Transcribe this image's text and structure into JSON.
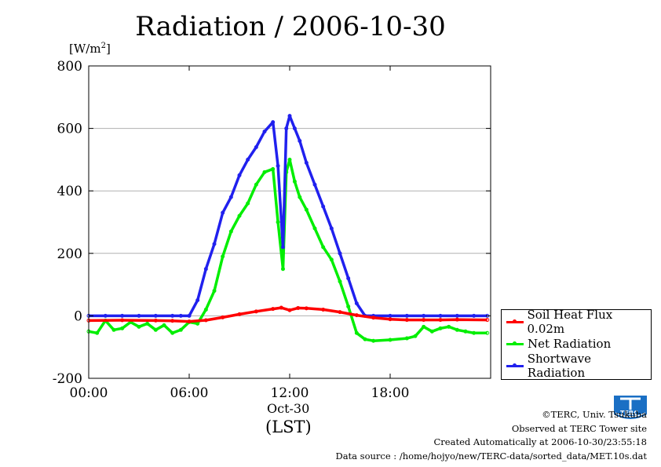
{
  "chart_data": {
    "type": "line",
    "title": "Radiation / 2006-10-30",
    "ylabel_unit": "W/m",
    "ylabel_unit_sup": "2",
    "xlabel": "(LST)",
    "date_label": "Oct-30",
    "ylim": [
      -200,
      800
    ],
    "xlim_hours": [
      0,
      24
    ],
    "y_ticks": [
      -200,
      0,
      200,
      400,
      600,
      800
    ],
    "y_tick_labels": [
      "-200",
      "0",
      "200",
      "400",
      "600",
      "800"
    ],
    "x_ticks_hours": [
      0,
      6,
      12,
      18
    ],
    "x_tick_labels": [
      "00:00",
      "06:00",
      "12:00",
      "18:00"
    ],
    "grid": true,
    "legend_placement": "outside-bottom-right",
    "series": [
      {
        "name": "Soil Heat Flux 0.02m",
        "color": "#ff0000",
        "x_hours": [
          0,
          2,
          4,
          5,
          6,
          7,
          8,
          9,
          10,
          11,
          11.5,
          12,
          12.5,
          13,
          14,
          15,
          16,
          17,
          18,
          19,
          20,
          21,
          22,
          23.8
        ],
        "values": [
          -15,
          -14,
          -15,
          -16,
          -18,
          -14,
          -5,
          5,
          14,
          22,
          26,
          18,
          25,
          24,
          20,
          12,
          2,
          -6,
          -11,
          -13,
          -13,
          -13,
          -12,
          -13
        ]
      },
      {
        "name": "Net Radiation",
        "color": "#00ee00",
        "x_hours": [
          0,
          0.5,
          1,
          1.5,
          2,
          2.5,
          3,
          3.5,
          4,
          4.5,
          5,
          5.5,
          6,
          6.5,
          7,
          7.5,
          8,
          8.5,
          9,
          9.5,
          10,
          10.5,
          11,
          11.3,
          11.6,
          11.8,
          12,
          12.3,
          12.6,
          13,
          13.5,
          14,
          14.5,
          15,
          15.5,
          16,
          16.5,
          17,
          18,
          19,
          19.5,
          20,
          20.5,
          21,
          21.5,
          22,
          22.5,
          23,
          23.8
        ],
        "values": [
          -50,
          -55,
          -15,
          -45,
          -40,
          -20,
          -35,
          -25,
          -45,
          -30,
          -55,
          -45,
          -20,
          -25,
          20,
          80,
          190,
          270,
          320,
          360,
          420,
          460,
          470,
          300,
          150,
          460,
          500,
          430,
          380,
          340,
          280,
          220,
          180,
          110,
          30,
          -55,
          -75,
          -80,
          -77,
          -72,
          -65,
          -35,
          -50,
          -40,
          -35,
          -45,
          -50,
          -55,
          -55
        ]
      },
      {
        "name": "Shortwave Radiation",
        "color": "#2020ee",
        "x_hours": [
          0,
          1,
          2,
          3,
          4,
          5,
          5.5,
          6,
          6.5,
          7,
          7.5,
          8,
          8.5,
          9,
          9.5,
          10,
          10.5,
          11,
          11.3,
          11.6,
          11.8,
          12,
          12.3,
          12.6,
          13,
          13.5,
          14,
          14.5,
          15,
          15.5,
          16,
          16.5,
          17,
          18,
          19,
          20,
          21,
          22,
          23,
          23.8
        ],
        "values": [
          0,
          0,
          0,
          0,
          0,
          0,
          0,
          0,
          50,
          150,
          230,
          330,
          380,
          450,
          500,
          540,
          590,
          620,
          480,
          220,
          600,
          640,
          600,
          560,
          490,
          420,
          350,
          280,
          200,
          120,
          40,
          0,
          0,
          0,
          0,
          0,
          0,
          0,
          0,
          0
        ]
      }
    ]
  },
  "footer": {
    "copyright": "©TERC, Univ. Tsukuba",
    "observed": "Observed at TERC Tower site",
    "created": "Created Automatically at 2006-10-30/23:55:18",
    "source": "Data source : /home/hojyo/new/TERC-data/sorted_data/MET.10s.dat",
    "logo_text": "TERC"
  }
}
